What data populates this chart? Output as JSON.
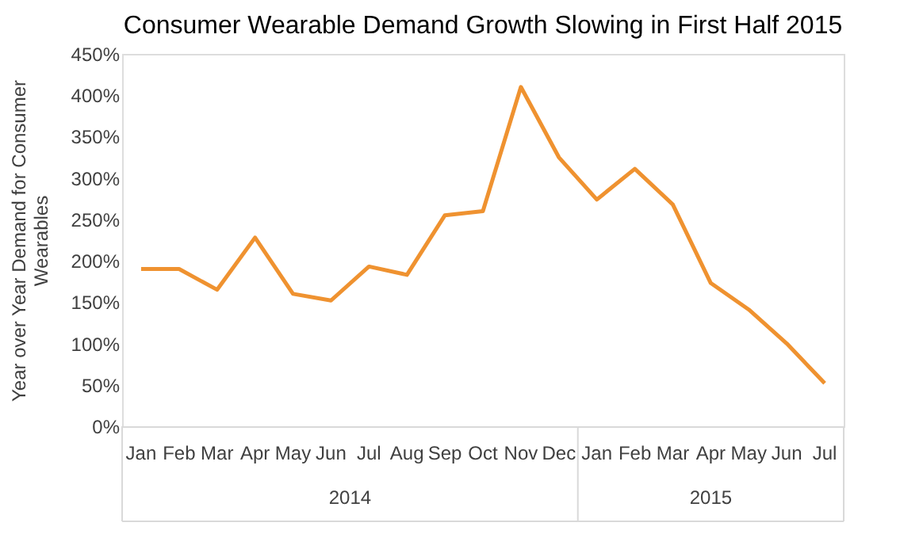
{
  "chart_data": {
    "type": "line",
    "title": "Consumer Wearable Demand Growth Slowing in First Half 2015",
    "ylabel": "Year over Year Demand for Consumer Wearables",
    "categories": [
      "Jan",
      "Feb",
      "Mar",
      "Apr",
      "May",
      "Jun",
      "Jul",
      "Aug",
      "Sep",
      "Oct",
      "Nov",
      "Dec",
      "Jan",
      "Feb",
      "Mar",
      "Apr",
      "May",
      "Jun",
      "Jul"
    ],
    "series": [
      {
        "color": "#ef9230",
        "values": [
          190,
          190,
          165,
          228,
          160,
          152,
          193,
          183,
          255,
          260,
          410,
          325,
          274,
          311,
          268,
          173,
          141,
          100,
          52
        ]
      }
    ],
    "ylim": [
      0,
      450
    ],
    "yticks": [
      {
        "value": 0,
        "label": "0%"
      },
      {
        "value": 50,
        "label": "50%"
      },
      {
        "value": 100,
        "label": "100%"
      },
      {
        "value": 150,
        "label": "150%"
      },
      {
        "value": 200,
        "label": "200%"
      },
      {
        "value": 250,
        "label": "250%"
      },
      {
        "value": 300,
        "label": "300%"
      },
      {
        "value": 350,
        "label": "350%"
      },
      {
        "value": 400,
        "label": "400%"
      },
      {
        "value": 450,
        "label": "450%"
      }
    ],
    "annotations": [
      "2014",
      "2015"
    ],
    "grid": false,
    "marker": "none",
    "line_style": "solid"
  }
}
